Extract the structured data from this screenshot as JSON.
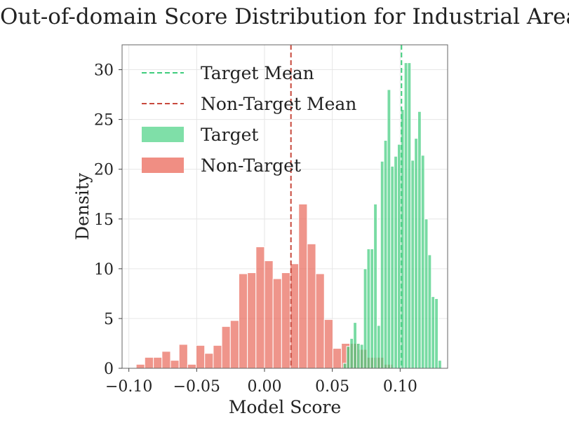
{
  "chart_data": {
    "type": "histogram",
    "title": "Out-of-domain Score Distribution for Industrial Area",
    "xlabel": "Model Score",
    "ylabel": "Density",
    "xlim": [
      -0.105,
      0.135
    ],
    "ylim": [
      0,
      32.5
    ],
    "xticks": [
      -0.1,
      -0.05,
      0.0,
      0.05,
      0.1
    ],
    "xtick_labels": [
      "−0.10",
      "−0.05",
      "0.00",
      "0.05",
      "0.10"
    ],
    "yticks": [
      0,
      5,
      10,
      15,
      20,
      25,
      30
    ],
    "ytick_labels": [
      "0",
      "5",
      "10",
      "15",
      "20",
      "25",
      "30"
    ],
    "grid": true,
    "legend_position": "top-left",
    "series": [
      {
        "name": "Non-Target",
        "color": "#e8685a",
        "bin_edges": [
          -0.0946,
          -0.0883,
          -0.0819,
          -0.0756,
          -0.0693,
          -0.063,
          -0.0567,
          -0.0504,
          -0.0441,
          -0.0378,
          -0.0315,
          -0.0252,
          -0.0189,
          -0.0126,
          -0.0063,
          0.0,
          0.0063,
          0.0126,
          0.0189,
          0.0252,
          0.0315,
          0.0378,
          0.0441,
          0.0504,
          0.0567,
          0.063,
          0.0693,
          0.0756,
          0.0819,
          0.0882,
          0.0945
        ],
        "values": [
          0.4,
          1.1,
          1.1,
          1.7,
          0.8,
          2.4,
          0.4,
          2.3,
          1.5,
          2.3,
          4.2,
          4.8,
          9.5,
          9.6,
          12.2,
          10.8,
          9.0,
          9.6,
          10.5,
          16.5,
          12.5,
          9.5,
          4.9,
          2.0,
          2.5,
          2.5,
          1.9,
          1.1,
          1.1,
          0.4
        ]
      },
      {
        "name": "Target",
        "color": "#3ecc7c",
        "bin_edges": [
          0.058,
          0.0605,
          0.063,
          0.0655,
          0.068,
          0.0705,
          0.073,
          0.0755,
          0.078,
          0.0805,
          0.083,
          0.0855,
          0.088,
          0.0905,
          0.093,
          0.0955,
          0.098,
          0.1005,
          0.103,
          0.1055,
          0.108,
          0.1105,
          0.113,
          0.1155,
          0.118,
          0.1205,
          0.123,
          0.1255,
          0.128,
          0.1305
        ],
        "values": [
          0.5,
          2.2,
          3.0,
          4.6,
          2.5,
          2.4,
          10.0,
          12.0,
          12.0,
          16.5,
          4.3,
          20.8,
          22.9,
          28.0,
          20.3,
          21.3,
          22.5,
          26.0,
          30.7,
          30.7,
          20.9,
          23.1,
          25.8,
          21.4,
          15.0,
          11.4,
          7.2,
          7.0,
          0.8
        ]
      }
    ],
    "mean_lines": [
      {
        "name": "Target Mean",
        "x": 0.101,
        "color": "#3ecc7c",
        "style": "dashed"
      },
      {
        "name": "Non-Target Mean",
        "x": 0.0195,
        "color": "#c8493d",
        "style": "dashed"
      }
    ],
    "legend": [
      {
        "label": "Target Mean",
        "kind": "dashed-line",
        "color": "#3ecc7c"
      },
      {
        "label": "Non-Target Mean",
        "kind": "dashed-line",
        "color": "#c8493d"
      },
      {
        "label": "Target",
        "kind": "patch",
        "color": "#7fdfa8"
      },
      {
        "label": "Non-Target",
        "kind": "patch",
        "color": "#f08e83"
      }
    ]
  }
}
